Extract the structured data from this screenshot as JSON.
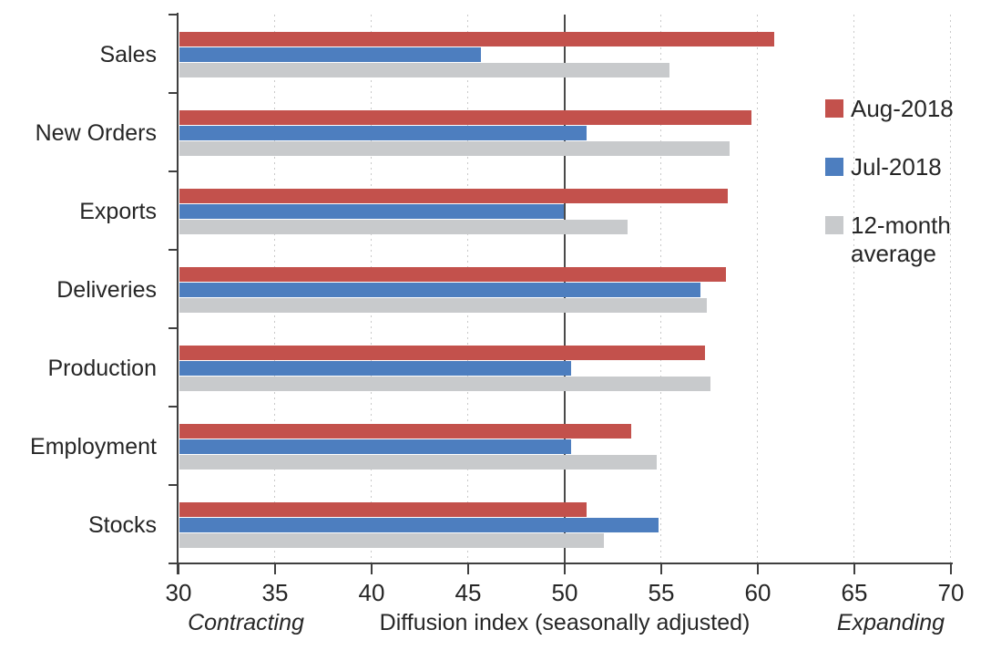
{
  "chart_data": {
    "type": "bar",
    "orientation": "horizontal",
    "categories": [
      "Sales",
      "New Orders",
      "Exports",
      "Deliveries",
      "Production",
      "Employment",
      "Stocks"
    ],
    "series": [
      {
        "name": "Aug-2018",
        "color": "#c3514c",
        "values": [
          60.8,
          59.6,
          58.4,
          58.3,
          57.2,
          53.4,
          51.1
        ]
      },
      {
        "name": "Jul-2018",
        "color": "#4d7ebf",
        "values": [
          45.6,
          51.1,
          49.9,
          57.0,
          50.3,
          50.3,
          54.8
        ]
      },
      {
        "name": "12-month average",
        "color": "#c8cacc",
        "values": [
          55.4,
          58.5,
          53.2,
          57.3,
          57.5,
          54.7,
          52.0
        ]
      }
    ],
    "xlim": [
      30,
      70
    ],
    "x_ticks": [
      30,
      35,
      40,
      45,
      50,
      55,
      60,
      65,
      70
    ],
    "reference_line": 50,
    "xlabel": "Diffusion index (seasonally adjusted)",
    "left_annotation": "Contracting",
    "right_annotation": "Expanding",
    "legend_position": "right",
    "grid": "dotted-vertical"
  },
  "colors": {
    "axis": "#3f3f3f",
    "text": "#262626",
    "gridline": "#c9c9c9",
    "reference_line": "#4a4a4a",
    "background": "#ffffff"
  }
}
